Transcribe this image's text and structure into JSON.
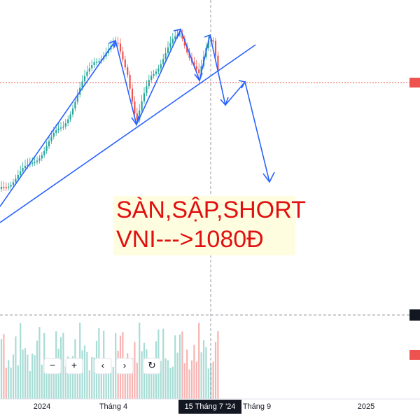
{
  "time_axis": {
    "labels": [
      "2024",
      "Tháng 4",
      "Tháng 9",
      "2025"
    ],
    "crosshair_label": "15 Tháng 7 '24"
  },
  "annotation": {
    "lines": [
      "SÀN,SẬP,SHORT",
      "VNI--->1080Đ"
    ]
  }
}
